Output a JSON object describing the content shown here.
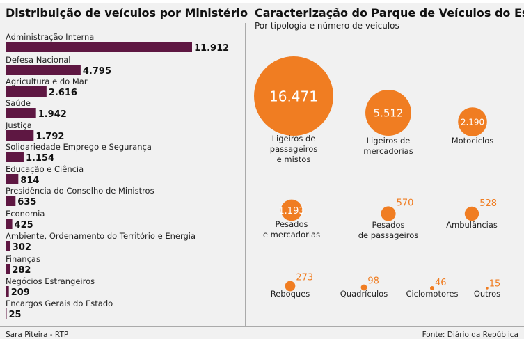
{
  "colors": {
    "bar": "#5e1742",
    "bubble": "#f07d22",
    "background": "#f1f1f1"
  },
  "footer": {
    "author": "Sara Piteira - RTP",
    "source": "Fonte: Diário da República"
  },
  "chart_data": [
    {
      "type": "bar",
      "orientation": "horizontal",
      "title": "Distribuição de veículos por Ministério",
      "categories": [
        "Administração Interna",
        "Defesa Nacional",
        "Agricultura e do Mar",
        "Saúde",
        "Justiça",
        "Solidariedade Emprego e Segurança",
        "Educação e Ciência",
        "Presidência do Conselho de Ministros",
        "Economia",
        "Ambiente, Ordenamento do Território e Energia",
        "Finanças",
        "Negócios Estrangeiros",
        "Encargos Gerais do Estado"
      ],
      "values": [
        11912,
        4795,
        2616,
        1942,
        1792,
        1154,
        814,
        635,
        425,
        302,
        282,
        209,
        25
      ],
      "value_labels": [
        "11.912",
        "4.795",
        "2.616",
        "1.942",
        "1.792",
        "1.154",
        "814",
        "635",
        "425",
        "302",
        "282",
        "209",
        "25"
      ]
    },
    {
      "type": "bubble",
      "title": "Caracterização do Parque de Veículos do Estado",
      "subtitle": "Por tipologia e número de veículos",
      "items": [
        {
          "label": [
            "Ligeiros de",
            "passageiros",
            "e mistos"
          ],
          "value": 16471,
          "value_label": "16.471"
        },
        {
          "label": [
            "Ligeiros de",
            "mercadorias"
          ],
          "value": 5512,
          "value_label": "5.512"
        },
        {
          "label": [
            "Motociclos"
          ],
          "value": 2190,
          "value_label": "2.190"
        },
        {
          "label": [
            "Pesados",
            "e mercadorias"
          ],
          "value": 1193,
          "value_label": "1.193"
        },
        {
          "label": [
            "Pesados",
            "de passageiros"
          ],
          "value": 570,
          "value_label": "570"
        },
        {
          "label": [
            "Ambulâncias"
          ],
          "value": 528,
          "value_label": "528"
        },
        {
          "label": [
            "Reboques"
          ],
          "value": 273,
          "value_label": "273"
        },
        {
          "label": [
            "Quadrículos"
          ],
          "value": 98,
          "value_label": "98"
        },
        {
          "label": [
            "Ciclomotores"
          ],
          "value": 46,
          "value_label": "46"
        },
        {
          "label": [
            "Outros"
          ],
          "value": 15,
          "value_label": "15"
        }
      ]
    }
  ]
}
